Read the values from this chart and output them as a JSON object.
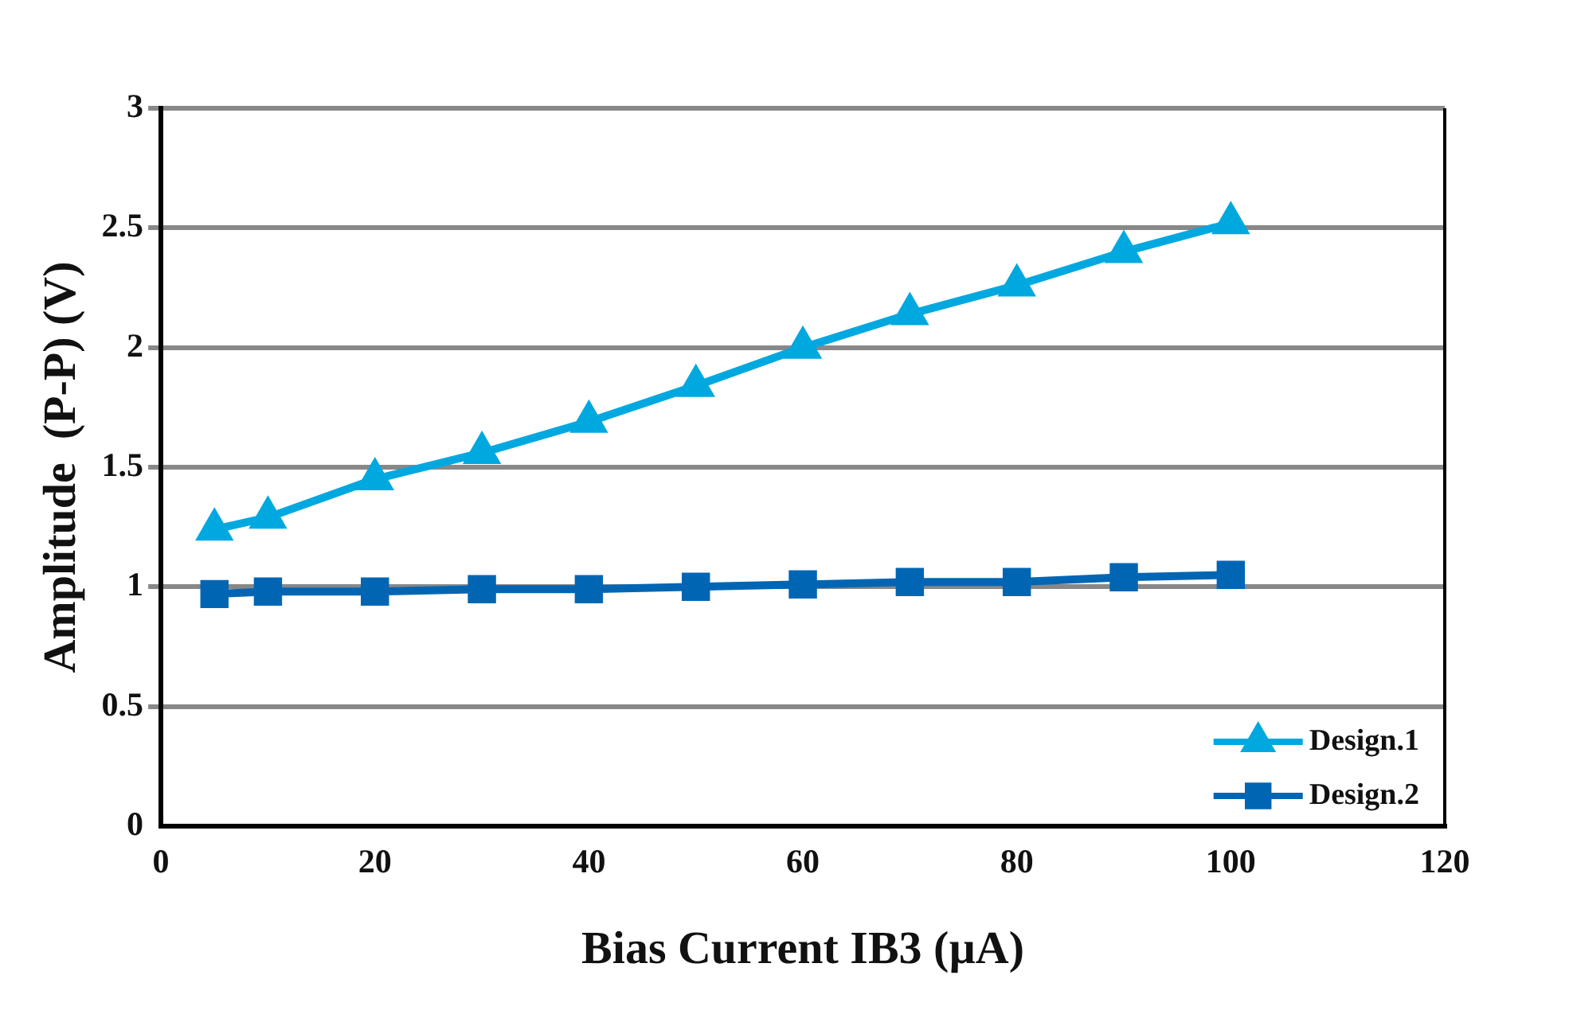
{
  "chart_data": {
    "type": "line",
    "xlabel": "Bias Current IB3 (µA)",
    "ylabel": "Amplitude  (P-P) (V)",
    "x": [
      5,
      10,
      20,
      30,
      40,
      50,
      60,
      70,
      80,
      90,
      100
    ],
    "series": [
      {
        "name": "Design.1",
        "color": "#00a8e0",
        "marker": "triangle",
        "values": [
          1.24,
          1.29,
          1.45,
          1.56,
          1.69,
          1.84,
          2.0,
          2.14,
          2.26,
          2.4,
          2.52
        ]
      },
      {
        "name": "Design.2",
        "color": "#0066b3",
        "marker": "square",
        "values": [
          0.97,
          0.98,
          0.98,
          0.99,
          0.99,
          1.0,
          1.01,
          1.02,
          1.02,
          1.04,
          1.05
        ]
      }
    ],
    "xlim": [
      0,
      120
    ],
    "xticks": [
      0,
      20,
      40,
      60,
      80,
      100,
      120
    ],
    "ylim": [
      0,
      3
    ],
    "yticks": [
      0,
      0.5,
      1,
      1.5,
      2,
      2.5,
      3
    ],
    "grid": "y",
    "legend": "bottom right"
  }
}
